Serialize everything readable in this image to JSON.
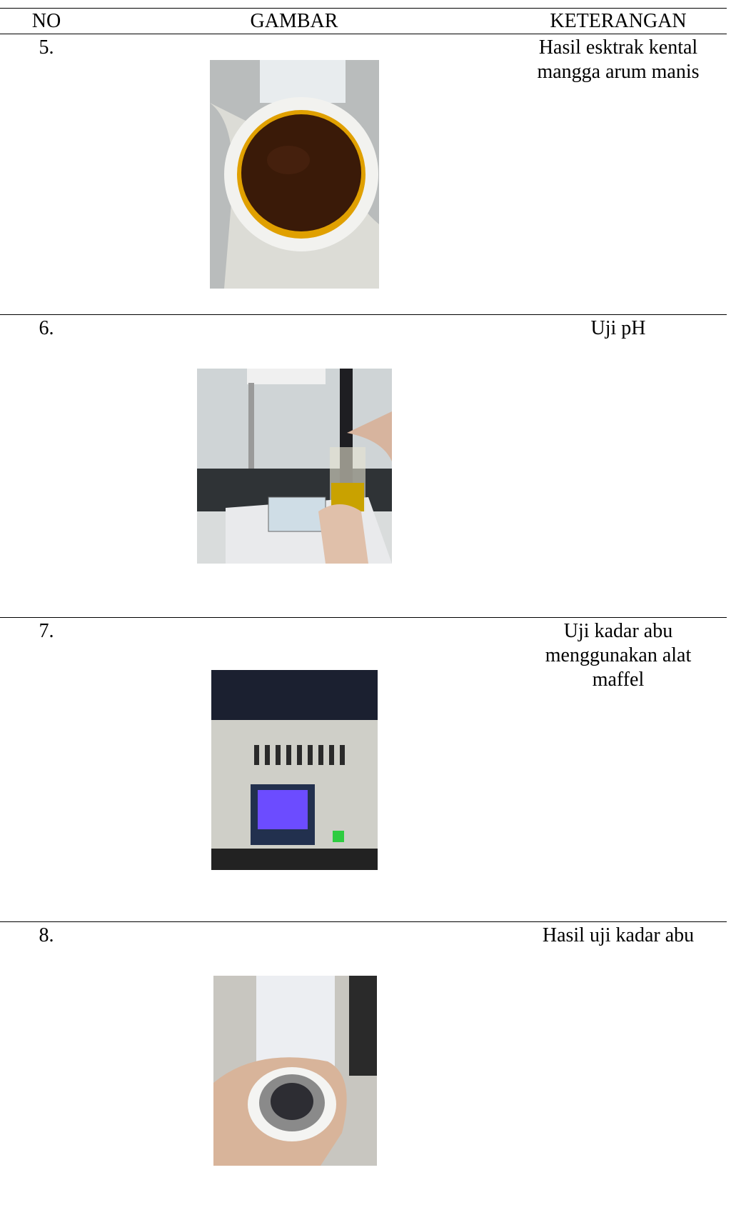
{
  "table": {
    "headers": [
      "NO",
      "GAMBAR",
      "KETERANGAN"
    ],
    "rows": [
      {
        "no": "5.",
        "keterangan": [
          "Hasil esktrak kental",
          "mangga arum manis"
        ]
      },
      {
        "no": "6.",
        "keterangan": [
          "Uji pH"
        ]
      },
      {
        "no": "7.",
        "keterangan": [
          "Uji kadar abu",
          "menggunakan alat",
          "maffel"
        ]
      },
      {
        "no": "8.",
        "keterangan": [
          "Hasil uji kadar abu"
        ]
      }
    ]
  }
}
